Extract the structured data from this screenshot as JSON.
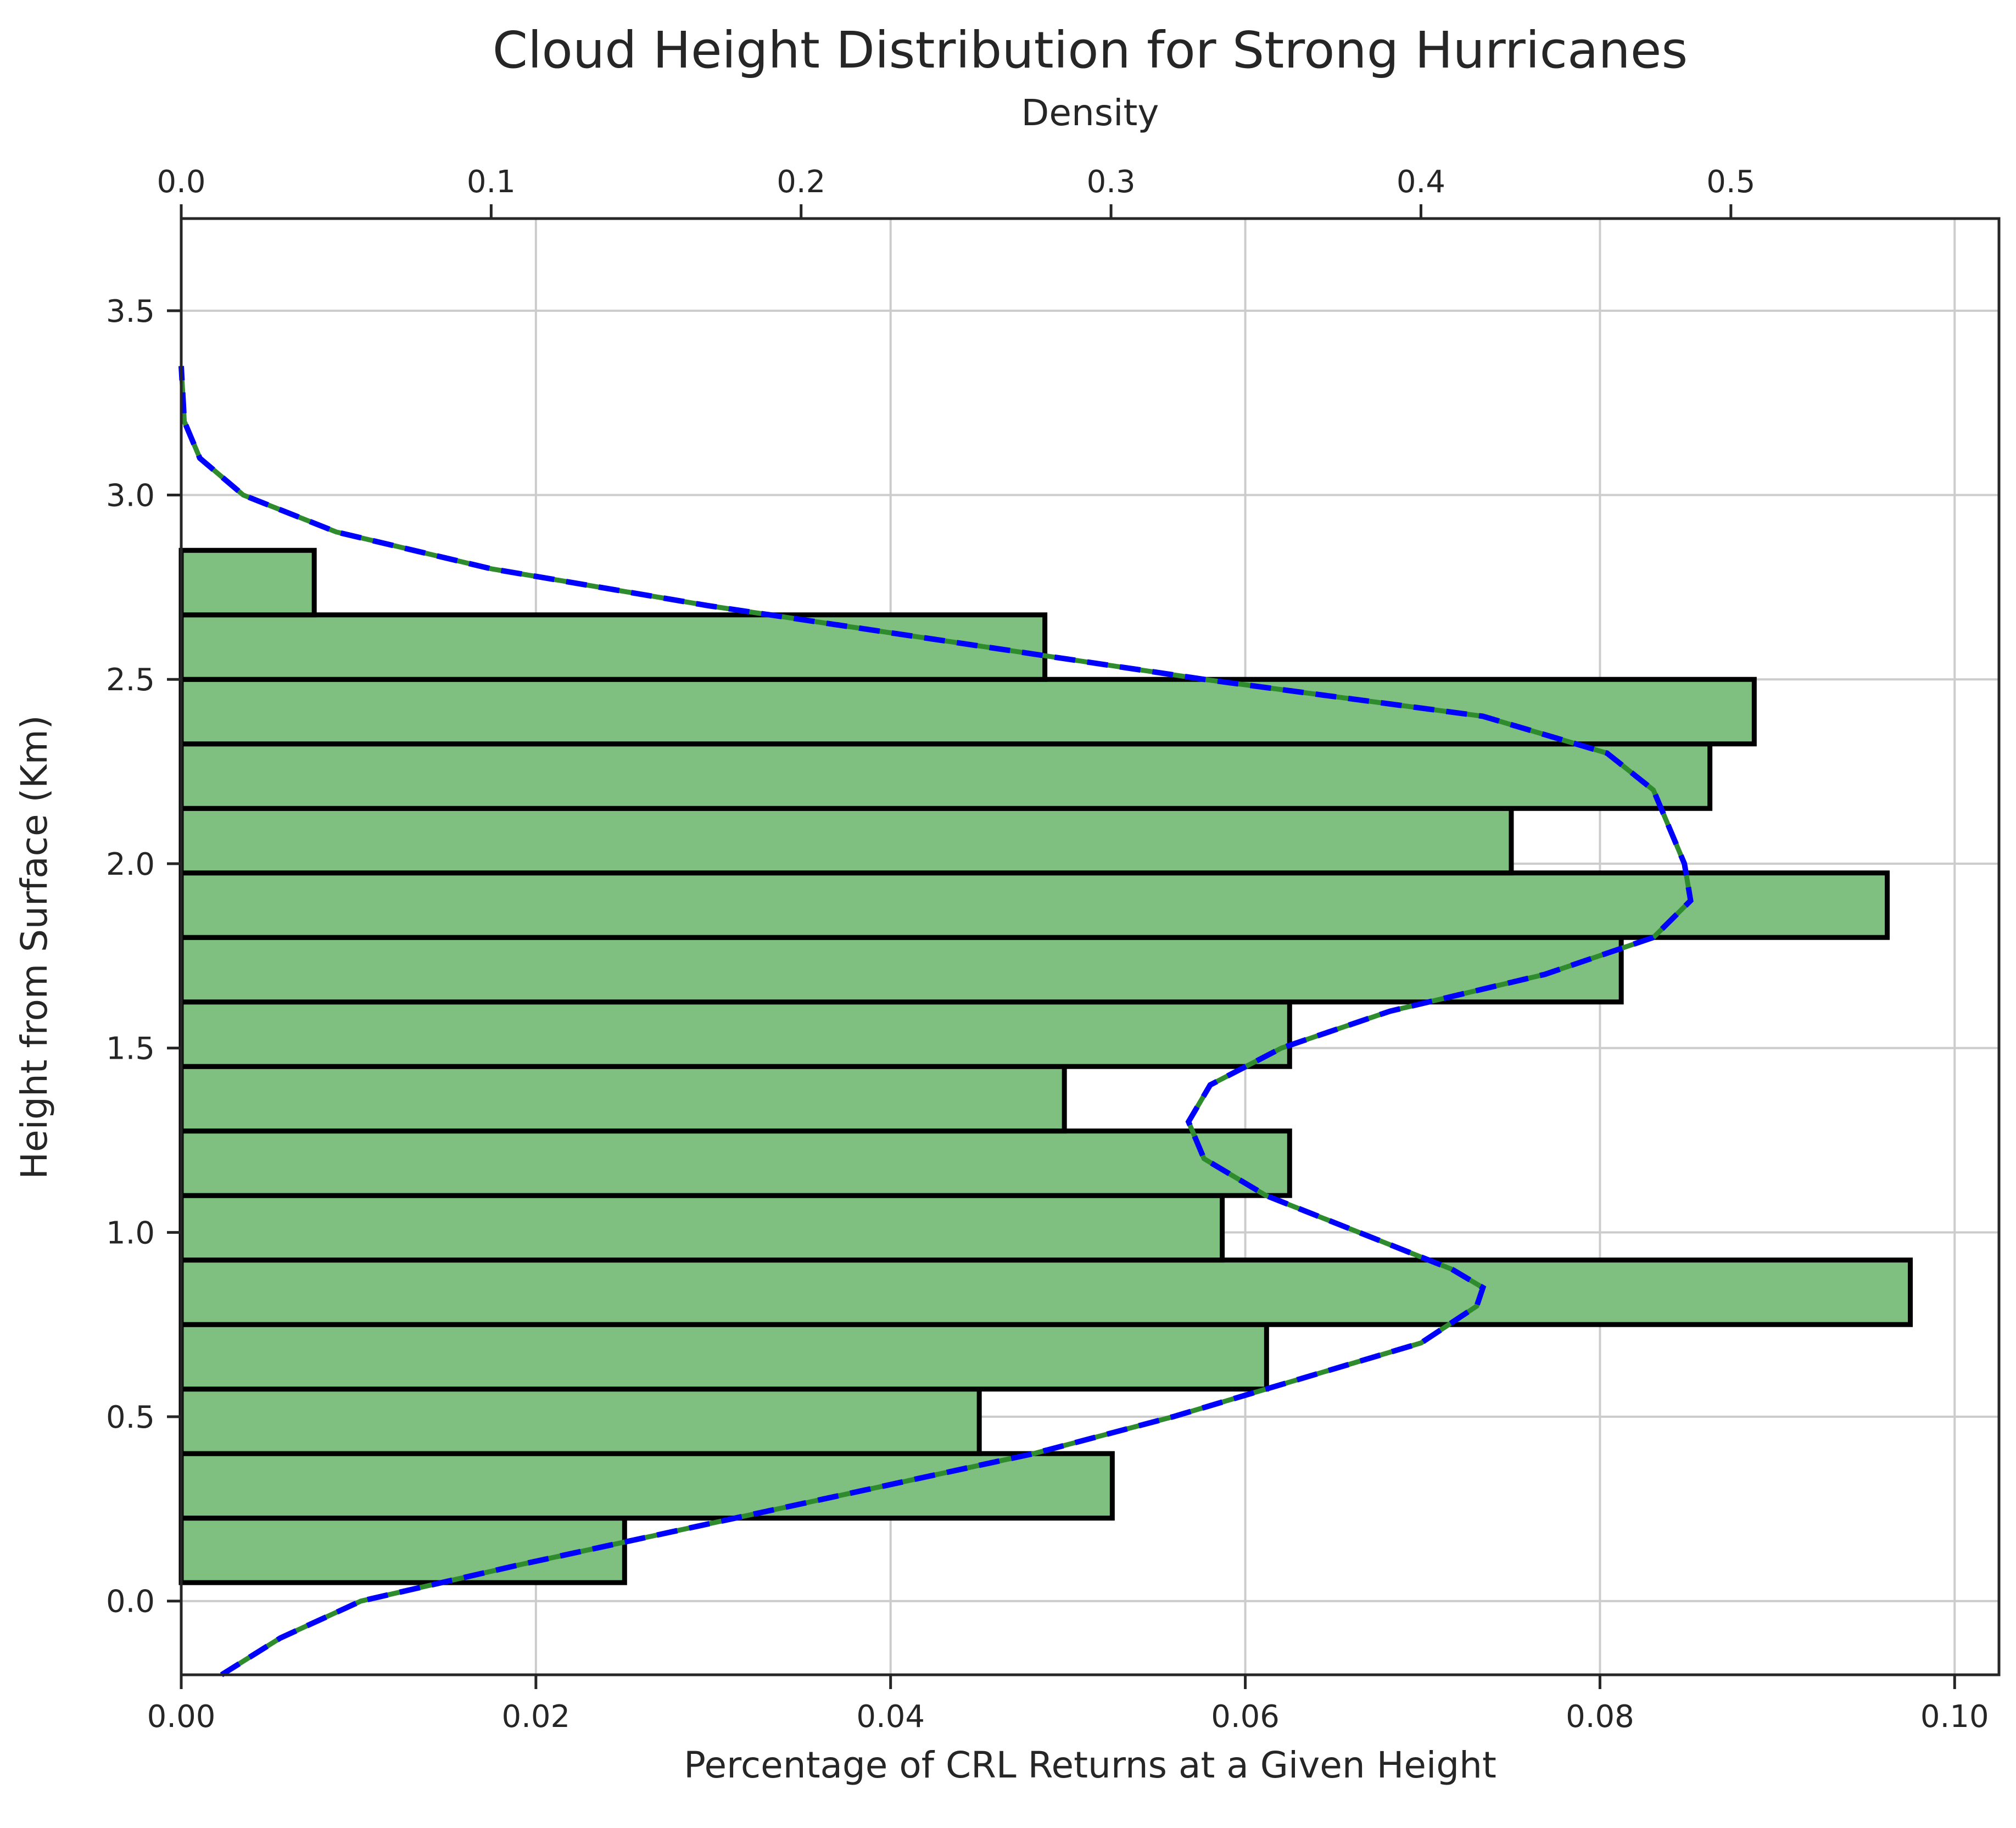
{
  "chart_data": {
    "type": "bar",
    "orientation": "horizontal",
    "title": "Cloud Height Distribution for Strong Hurricanes",
    "xlabel": "Percentage of CRL Returns at a Given Height",
    "ylabel": "Height from Surface (Km)",
    "secondary_xlabel": "Density",
    "xlim": [
      0,
      0.1025
    ],
    "ylim": [
      -0.2,
      3.75
    ],
    "secondary_xlim": [
      0,
      0.5865
    ],
    "xticks": [
      "0.00",
      "0.02",
      "0.04",
      "0.06",
      "0.08",
      "0.10"
    ],
    "xtick_values": [
      0,
      0.02,
      0.04,
      0.06,
      0.08,
      0.1
    ],
    "yticks": [
      "0.0",
      "0.5",
      "1.0",
      "1.5",
      "2.0",
      "2.5",
      "3.0",
      "3.5"
    ],
    "ytick_values": [
      0,
      0.5,
      1.0,
      1.5,
      2.0,
      2.5,
      3.0,
      3.5
    ],
    "secondary_xticks": [
      "0.0",
      "0.1",
      "0.2",
      "0.3",
      "0.4",
      "0.5"
    ],
    "secondary_xtick_values": [
      0,
      0.1,
      0.2,
      0.3,
      0.4,
      0.5
    ],
    "grid": true,
    "colors": {
      "bar_fill": "#7fbf7f",
      "bar_edge": "#000000",
      "kde_solid": "#2e8b2e",
      "kde_dashed": "#0000ff"
    },
    "bins": [
      {
        "y0": 0.05,
        "y1": 0.225,
        "value": 0.025
      },
      {
        "y0": 0.225,
        "y1": 0.4,
        "value": 0.0525
      },
      {
        "y0": 0.4,
        "y1": 0.575,
        "value": 0.045
      },
      {
        "y0": 0.575,
        "y1": 0.75,
        "value": 0.0612
      },
      {
        "y0": 0.75,
        "y1": 0.925,
        "value": 0.0975
      },
      {
        "y0": 0.925,
        "y1": 1.1,
        "value": 0.0587
      },
      {
        "y0": 1.1,
        "y1": 1.275,
        "value": 0.0625
      },
      {
        "y0": 1.275,
        "y1": 1.45,
        "value": 0.0498
      },
      {
        "y0": 1.45,
        "y1": 1.625,
        "value": 0.0625
      },
      {
        "y0": 1.625,
        "y1": 1.8,
        "value": 0.0812
      },
      {
        "y0": 1.8,
        "y1": 1.975,
        "value": 0.0962
      },
      {
        "y0": 1.975,
        "y1": 2.15,
        "value": 0.075
      },
      {
        "y0": 2.15,
        "y1": 2.325,
        "value": 0.0862
      },
      {
        "y0": 2.325,
        "y1": 2.5,
        "value": 0.0887
      },
      {
        "y0": 2.5,
        "y1": 2.675,
        "value": 0.0487
      },
      {
        "y0": 2.675,
        "y1": 2.85,
        "value": 0.0075
      }
    ],
    "kde_density": [
      [
        -0.2,
        0.013
      ],
      [
        -0.1,
        0.032
      ],
      [
        0.0,
        0.058
      ],
      [
        0.1,
        0.11
      ],
      [
        0.2,
        0.165
      ],
      [
        0.3,
        0.22
      ],
      [
        0.4,
        0.275
      ],
      [
        0.5,
        0.32
      ],
      [
        0.6,
        0.36
      ],
      [
        0.7,
        0.4
      ],
      [
        0.8,
        0.418
      ],
      [
        0.85,
        0.42
      ],
      [
        0.9,
        0.41
      ],
      [
        1.0,
        0.38
      ],
      [
        1.1,
        0.35
      ],
      [
        1.2,
        0.33
      ],
      [
        1.3,
        0.325
      ],
      [
        1.4,
        0.332
      ],
      [
        1.5,
        0.355
      ],
      [
        1.6,
        0.39
      ],
      [
        1.7,
        0.44
      ],
      [
        1.8,
        0.475
      ],
      [
        1.9,
        0.487
      ],
      [
        2.0,
        0.485
      ],
      [
        2.1,
        0.48
      ],
      [
        2.2,
        0.475
      ],
      [
        2.3,
        0.46
      ],
      [
        2.4,
        0.42
      ],
      [
        2.5,
        0.33
      ],
      [
        2.6,
        0.25
      ],
      [
        2.7,
        0.17
      ],
      [
        2.8,
        0.1
      ],
      [
        2.9,
        0.05
      ],
      [
        3.0,
        0.02
      ],
      [
        3.1,
        0.006
      ],
      [
        3.2,
        0.001
      ],
      [
        3.35,
        0.0
      ]
    ]
  }
}
